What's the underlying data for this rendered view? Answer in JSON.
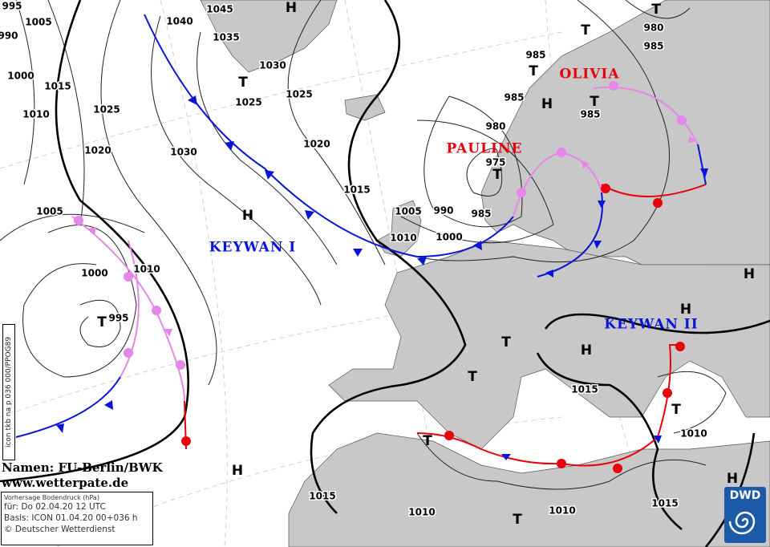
{
  "map": {
    "credit_line1": "Namen: FU-Berlin/BWK",
    "credit_line2": "www.wetterpate.de",
    "info": {
      "title": "Vorhersage Bodendruck (hPa)",
      "valid": "für:  Do 02.04.20  12 UTC",
      "base": "Basis: ICON  01.04.20 00+036 h",
      "copyright": "© Deutscher Wetterdienst"
    },
    "model_tag": "icon tkb na p 036 000/PPOG89",
    "logo_text": "DWD",
    "storm_names": [
      "OLIVIA",
      "PAULINE",
      "KEYWAN I",
      "KEYWAN II"
    ],
    "isobar_labels": [
      "995",
      "1005",
      "990",
      "1000",
      "1015",
      "1010",
      "1025",
      "1020",
      "1030",
      "1040",
      "1045",
      "1035",
      "1030",
      "1025",
      "1025",
      "1020",
      "1015",
      "1005",
      "1010",
      "990",
      "985",
      "1000",
      "975",
      "980",
      "985",
      "985",
      "985",
      "980",
      "985",
      "1005",
      "1010",
      "1000",
      "995",
      "1015",
      "1010",
      "1015",
      "1010",
      "1010",
      "1015"
    ],
    "high_label": "H",
    "low_label": "T",
    "colors": {
      "warm_front": "#e8000b",
      "cold_front": "#0a14d8",
      "occlusion": "#e487e8",
      "land": "#c8c8c8",
      "sea": "#ffffff",
      "logo": "#1c5aa8"
    }
  }
}
